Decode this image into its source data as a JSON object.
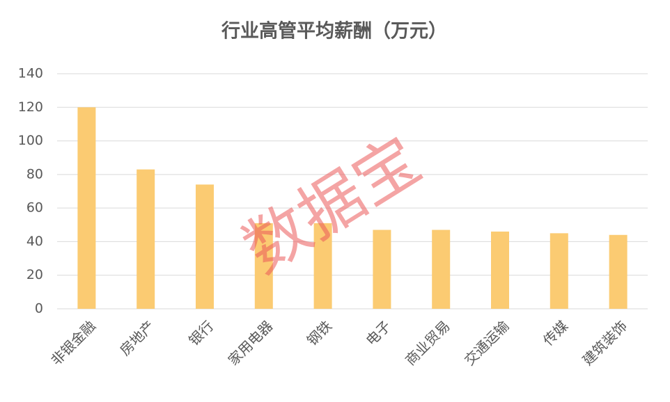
{
  "chart_data": {
    "type": "bar",
    "title": "行业高管平均薪酬（万元）",
    "categories": [
      "非银金融",
      "房地产",
      "银行",
      "家用电器",
      "钢铁",
      "电子",
      "商业贸易",
      "交通运输",
      "传媒",
      "建筑装饰"
    ],
    "values": [
      120,
      83,
      74,
      51,
      51,
      47,
      47,
      46,
      45,
      44
    ],
    "color": "#fbcb72",
    "ylim": [
      0,
      140
    ],
    "yticks": [
      0,
      20,
      40,
      60,
      80,
      100,
      120,
      140
    ],
    "grid": true
  },
  "watermark": "数据宝"
}
